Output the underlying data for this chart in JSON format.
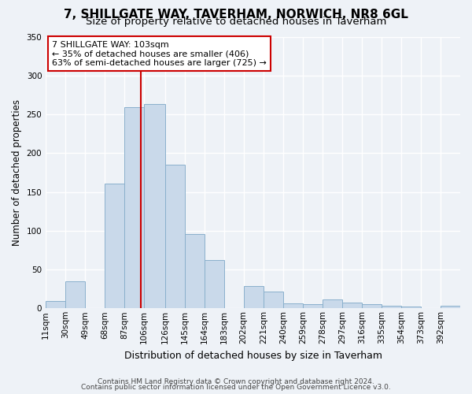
{
  "title": "7, SHILLGATE WAY, TAVERHAM, NORWICH, NR8 6GL",
  "subtitle": "Size of property relative to detached houses in Taverham",
  "xlabel": "Distribution of detached houses by size in Taverham",
  "ylabel": "Number of detached properties",
  "bar_color": "#c9d9ea",
  "bar_edge_color": "#8ab0cc",
  "background_color": "#eef2f7",
  "grid_color": "#ffffff",
  "bin_labels": [
    "11sqm",
    "30sqm",
    "49sqm",
    "68sqm",
    "87sqm",
    "106sqm",
    "126sqm",
    "145sqm",
    "164sqm",
    "183sqm",
    "202sqm",
    "221sqm",
    "240sqm",
    "259sqm",
    "278sqm",
    "297sqm",
    "316sqm",
    "335sqm",
    "354sqm",
    "373sqm",
    "392sqm"
  ],
  "bar_values": [
    9,
    35,
    0,
    161,
    259,
    263,
    185,
    96,
    62,
    0,
    29,
    22,
    6,
    5,
    11,
    7,
    5,
    3,
    2,
    0,
    3
  ],
  "bin_edges": [
    11,
    30,
    49,
    68,
    87,
    106,
    126,
    145,
    164,
    183,
    202,
    221,
    240,
    259,
    278,
    297,
    316,
    335,
    354,
    373,
    392,
    411
  ],
  "ylim": [
    0,
    350
  ],
  "yticks": [
    0,
    50,
    100,
    150,
    200,
    250,
    300,
    350
  ],
  "vline_x": 103,
  "vline_color": "#cc0000",
  "annotation_text": "7 SHILLGATE WAY: 103sqm\n← 35% of detached houses are smaller (406)\n63% of semi-detached houses are larger (725) →",
  "annotation_box_color": "#ffffff",
  "annotation_box_edge": "#cc0000",
  "footer1": "Contains HM Land Registry data © Crown copyright and database right 2024.",
  "footer2": "Contains public sector information licensed under the Open Government Licence v3.0.",
  "title_fontsize": 11,
  "subtitle_fontsize": 9.5,
  "ylabel_fontsize": 8.5,
  "xlabel_fontsize": 9,
  "tick_fontsize": 7.5,
  "annotation_fontsize": 8,
  "footer_fontsize": 6.5
}
